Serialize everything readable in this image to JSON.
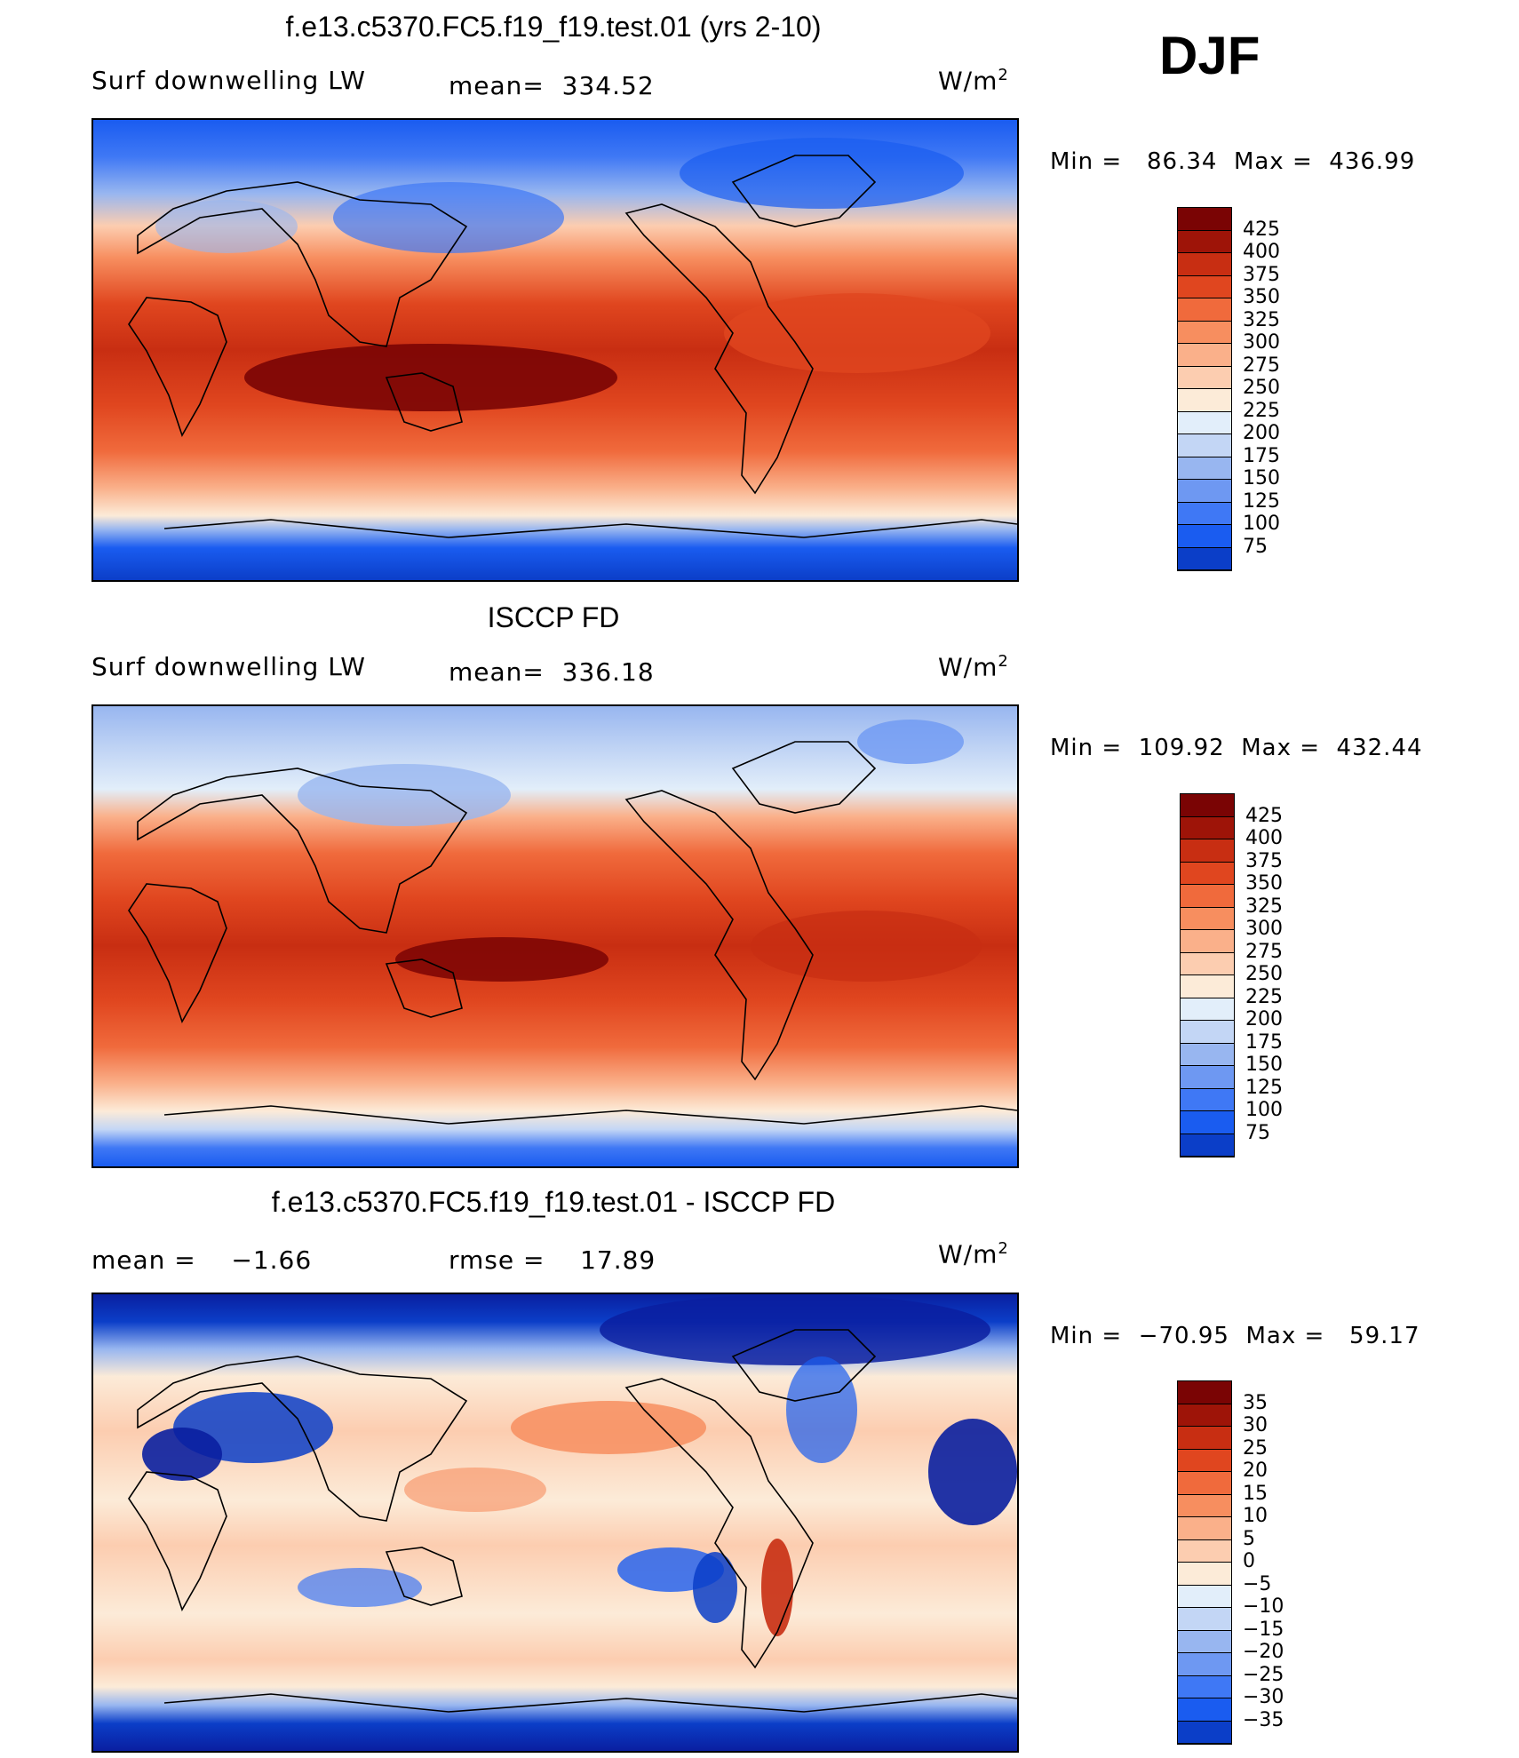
{
  "season": "DJF",
  "colors": {
    "abs": [
      "#0a0a6e",
      "#0a1fa0",
      "#0b3ec8",
      "#1a5cf0",
      "#3f78f5",
      "#6e98f2",
      "#98b6f0",
      "#c3d6f5",
      "#e2eefa",
      "#fcebd8",
      "#fccdb0",
      "#fab08a",
      "#f78e5f",
      "#f06a3c",
      "#e0461f",
      "#c82e12",
      "#9e1408",
      "#7a0404"
    ],
    "diff": [
      "#0a0a6e",
      "#0a1fa0",
      "#0b3ec8",
      "#1a5cf0",
      "#3f78f5",
      "#6e98f2",
      "#98b6f0",
      "#c3d6f5",
      "#e2eefa",
      "#fcebd8",
      "#fccdb0",
      "#fab08a",
      "#f78e5f",
      "#f06a3c",
      "#e0461f",
      "#c82e12",
      "#9e1408",
      "#7a0404"
    ]
  },
  "panels": [
    {
      "title": "f.e13.c5370.FC5.f19_f19.test.01 (yrs 2-10)",
      "left": "Surf downwelling LW",
      "middle": "mean=  334.52",
      "units": "W/m",
      "units_sup": "2",
      "minmax": "Min =   86.34  Max =  436.99",
      "levels": [
        "425",
        "400",
        "375",
        "350",
        "325",
        "300",
        "275",
        "250",
        "225",
        "200",
        "175",
        "150",
        "125",
        "100",
        "75"
      ]
    },
    {
      "title": "ISCCP FD",
      "left": "Surf downwelling LW",
      "middle": "mean=  336.18",
      "units": "W/m",
      "units_sup": "2",
      "minmax": "Min =  109.92  Max =  432.44",
      "levels": [
        "425",
        "400",
        "375",
        "350",
        "325",
        "300",
        "275",
        "250",
        "225",
        "200",
        "175",
        "150",
        "125",
        "100",
        "75"
      ]
    },
    {
      "title": "f.e13.c5370.FC5.f19_f19.test.01 - ISCCP FD",
      "left": "mean =    −1.66",
      "middle": "rmse =    17.89",
      "units": "W/m",
      "units_sup": "2",
      "minmax": "Min =  −70.95  Max =   59.17",
      "levels": [
        "35",
        "30",
        "25",
        "20",
        "15",
        "10",
        "5",
        "0",
        "−5",
        "−10",
        "−15",
        "−20",
        "−25",
        "−30",
        "−35"
      ]
    }
  ]
}
